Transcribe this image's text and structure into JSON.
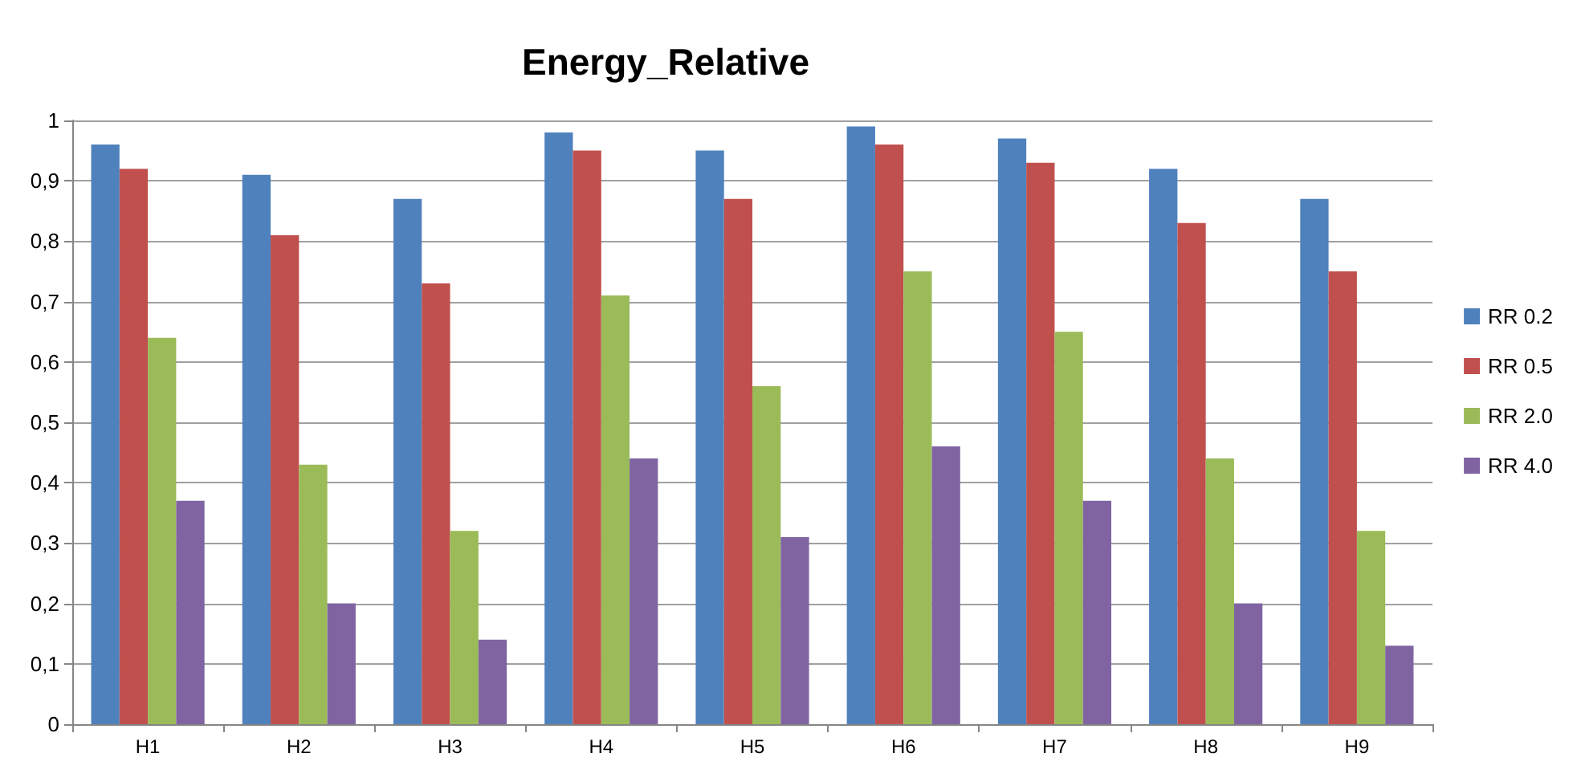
{
  "chart_data": {
    "type": "bar",
    "title": "Energy_Relative",
    "categories": [
      "H1",
      "H2",
      "H3",
      "H4",
      "H5",
      "H6",
      "H7",
      "H8",
      "H9"
    ],
    "series": [
      {
        "name": "RR 0.2",
        "color": "#4f81bd",
        "values": [
          0.96,
          0.91,
          0.87,
          0.98,
          0.95,
          0.99,
          0.97,
          0.92,
          0.87
        ]
      },
      {
        "name": "RR 0.5",
        "color": "#c0504d",
        "values": [
          0.92,
          0.81,
          0.73,
          0.95,
          0.87,
          0.96,
          0.93,
          0.83,
          0.75
        ]
      },
      {
        "name": "RR 2.0",
        "color": "#9bbb59",
        "values": [
          0.64,
          0.43,
          0.32,
          0.71,
          0.56,
          0.75,
          0.65,
          0.44,
          0.32
        ]
      },
      {
        "name": "RR 4.0",
        "color": "#8064a2",
        "values": [
          0.37,
          0.2,
          0.14,
          0.44,
          0.31,
          0.46,
          0.37,
          0.2,
          0.13
        ]
      }
    ],
    "ylim": [
      0,
      1
    ],
    "yticks": [
      0,
      {
        "value": 0.1,
        "label": "0,1"
      },
      {
        "value": 0.2,
        "label": "0,2"
      },
      {
        "value": 0.3,
        "label": "0,3"
      },
      {
        "value": 0.4,
        "label": "0,4"
      },
      {
        "value": 0.5,
        "label": "0,5"
      },
      {
        "value": 0.6,
        "label": "0,6"
      },
      {
        "value": 0.7,
        "label": "0,7"
      },
      {
        "value": 0.8,
        "label": "0,8"
      },
      {
        "value": 0.9,
        "label": "0,9"
      },
      1
    ],
    "grid": "y",
    "legend": "right"
  }
}
